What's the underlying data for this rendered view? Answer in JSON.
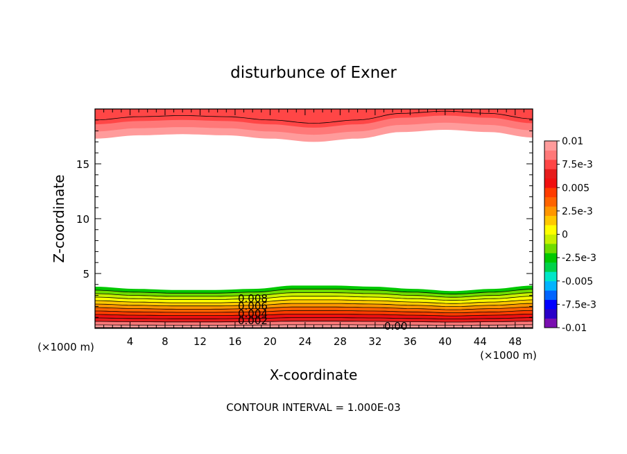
{
  "chart_data": {
    "type": "contour",
    "title": "disturbunce of Exner",
    "xlabel": "X-coordinate",
    "ylabel": "Z-coordinate",
    "x_unit_label_left": "(×1000 m)",
    "x_unit_label_right": "(×1000 m)",
    "xlim": [
      0,
      50
    ],
    "ylim": [
      0,
      20
    ],
    "x_ticks": [
      4,
      8,
      12,
      16,
      20,
      24,
      28,
      32,
      36,
      40,
      44,
      48
    ],
    "y_ticks": [
      5,
      10,
      15
    ],
    "contour_interval_text": "CONTOUR INTERVAL = 1.000E-03",
    "contour_labels": [
      "0.008",
      "0.006",
      "0.004",
      "0.002",
      "0.00"
    ],
    "colorbar": {
      "min": -0.01,
      "max": 0.01,
      "tick_labels": [
        "0.01",
        "7.5e-3",
        "0.005",
        "2.5e-3",
        "0",
        "-2.5e-3",
        "-0.005",
        "-7.5e-3",
        "-0.01"
      ],
      "colors": [
        "#7a0fb0",
        "#2a00c8",
        "#0000ff",
        "#0064ff",
        "#00b4ff",
        "#00e6c8",
        "#00d24a",
        "#00c800",
        "#6edc00",
        "#c8f000",
        "#ffff00",
        "#ffc800",
        "#ff9600",
        "#ff6400",
        "#ff3c00",
        "#f01010",
        "#e61c1c",
        "#ff4646",
        "#ff7878",
        "#ff9b9b"
      ]
    },
    "lower_band_top_z": [
      3.8,
      3.6,
      3.5,
      3.5,
      3.6,
      3.9,
      3.9,
      3.8,
      3.6,
      3.4,
      3.6,
      3.9
    ],
    "upper_band_bottom_z": [
      17.3,
      17.6,
      17.7,
      17.6,
      17.3,
      17.0,
      17.3,
      17.9,
      18.1,
      17.9,
      17.4
    ],
    "grid": false
  }
}
